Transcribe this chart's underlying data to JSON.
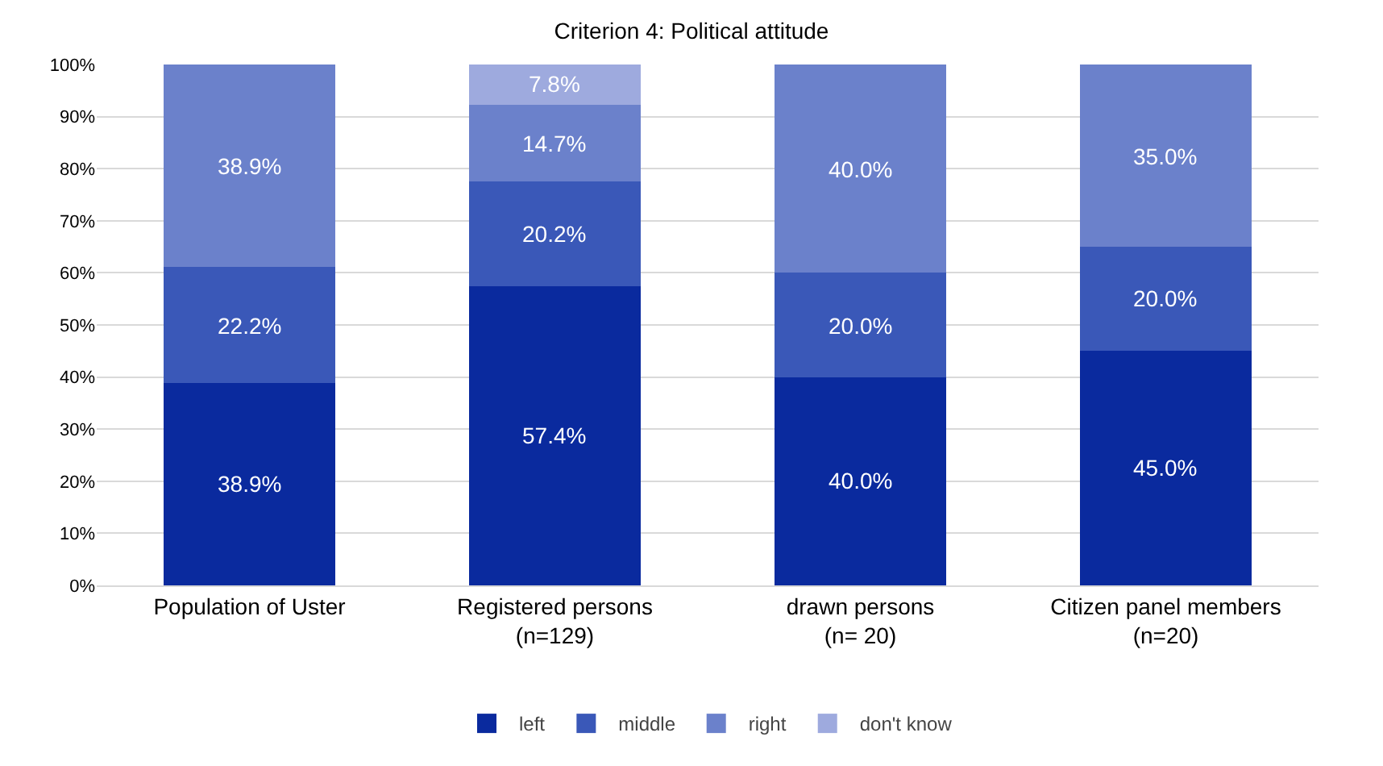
{
  "chart_data": {
    "type": "bar",
    "title": "Criterion 4: Political attitude",
    "stacked": true,
    "categories": [
      "Population of Uster",
      "Registered persons (n=129)",
      "drawn persons (n= 20)",
      "Citizen panel members (n=20)"
    ],
    "series": [
      {
        "name": "left",
        "color": "#0a2a9e",
        "values": [
          38.9,
          57.4,
          40.0,
          45.0
        ],
        "value_labels": [
          "38.9%",
          "57.4%",
          "40.0%",
          "45.0%"
        ]
      },
      {
        "name": "middle",
        "color": "#3a58b8",
        "values": [
          22.2,
          20.2,
          20.0,
          20.0
        ],
        "value_labels": [
          "22.2%",
          "20.2%",
          "20.0%",
          "20.0%"
        ]
      },
      {
        "name": "right",
        "color": "#6b81cb",
        "values": [
          38.9,
          14.7,
          40.0,
          35.0
        ],
        "value_labels": [
          "38.9%",
          "14.7%",
          "40.0%",
          "35.0%"
        ]
      },
      {
        "name": "don't know",
        "color": "#9eaade",
        "values": [
          null,
          7.8,
          null,
          null
        ],
        "value_labels": [
          null,
          "7.8%",
          null,
          null
        ]
      }
    ],
    "ylim": [
      0,
      100
    ],
    "yticks": [
      {
        "value": 0,
        "label": "0%"
      },
      {
        "value": 10,
        "label": "10%"
      },
      {
        "value": 20,
        "label": "20%"
      },
      {
        "value": 30,
        "label": "30%"
      },
      {
        "value": 40,
        "label": "40%"
      },
      {
        "value": 50,
        "label": "50%"
      },
      {
        "value": 60,
        "label": "60%"
      },
      {
        "value": 70,
        "label": "70%"
      },
      {
        "value": 80,
        "label": "80%"
      },
      {
        "value": 90,
        "label": "90%"
      },
      {
        "value": 100,
        "label": "100%"
      }
    ],
    "grid": "y",
    "legend": "bottom"
  }
}
